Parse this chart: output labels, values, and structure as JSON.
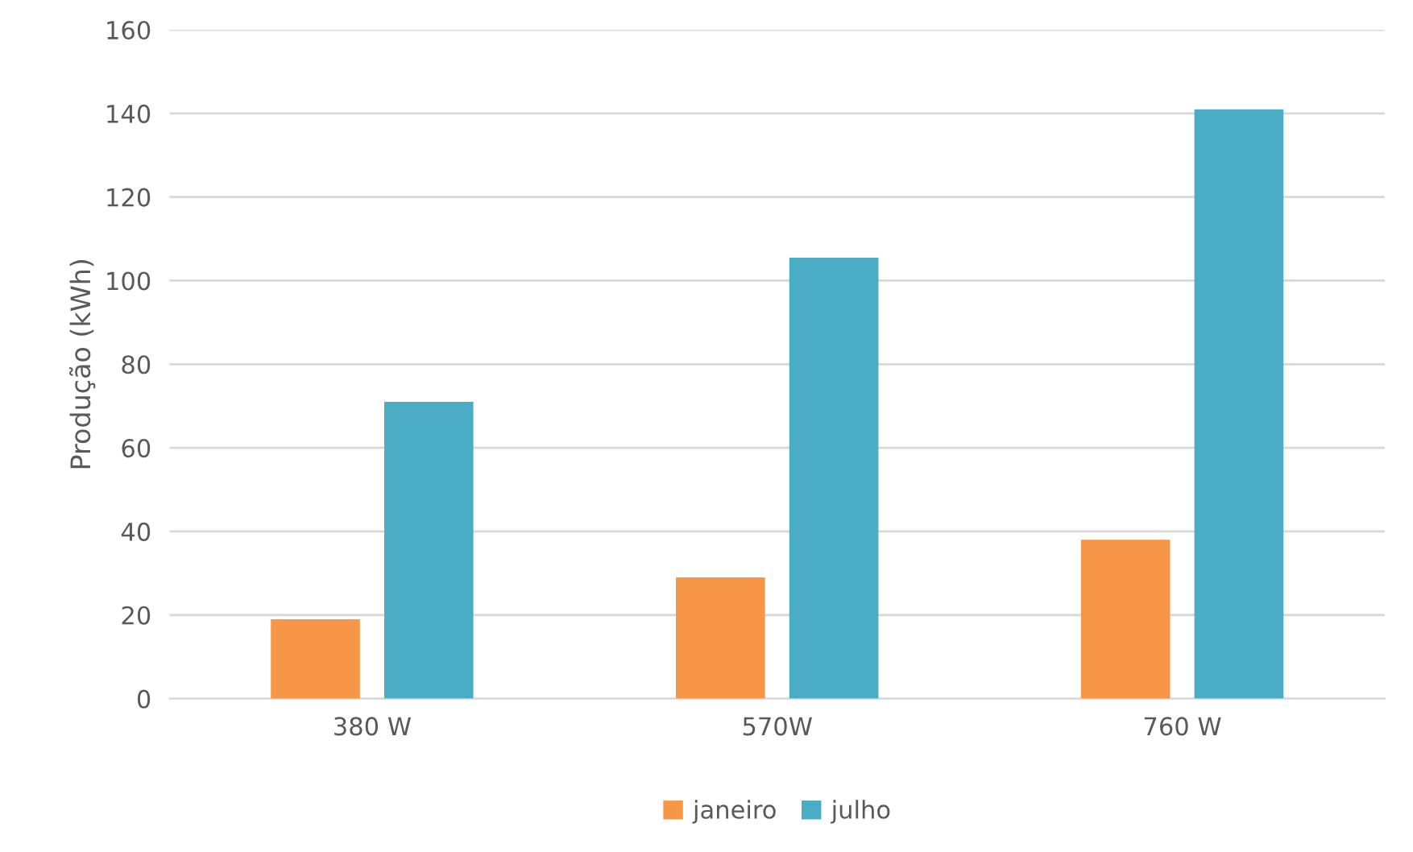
{
  "chart_data": {
    "type": "bar",
    "ylabel": "Produção (kWh)",
    "categories": [
      "380 W",
      "570W",
      "760 W"
    ],
    "series": [
      {
        "name": "janeiro",
        "color": "#f79646",
        "values": [
          19,
          29,
          38
        ]
      },
      {
        "name": "julho",
        "color": "#4bacc6",
        "values": [
          71,
          105.5,
          141
        ]
      }
    ],
    "ylim": [
      0,
      160
    ],
    "yticks": [
      0,
      20,
      40,
      60,
      80,
      100,
      120,
      140,
      160
    ],
    "grid": "y",
    "legend": "bottom"
  }
}
